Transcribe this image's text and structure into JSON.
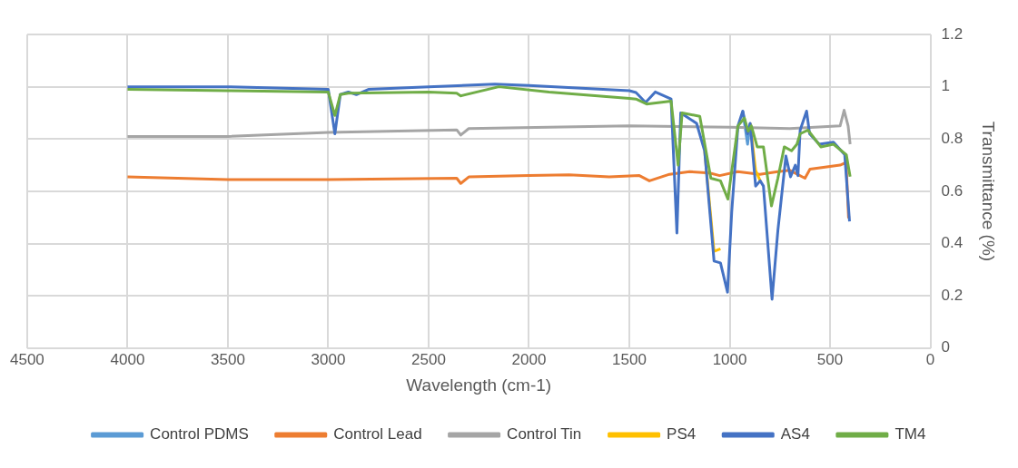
{
  "chart_data": {
    "type": "line",
    "xlabel": "Wavelength (cm-1)",
    "ylabel": "Transmittance (%)",
    "xlim": [
      4500,
      0
    ],
    "xticks": [
      4500,
      4000,
      3500,
      3000,
      2500,
      2000,
      1500,
      1000,
      500,
      0
    ],
    "ylim": [
      0,
      1.2
    ],
    "yticks": [
      0,
      0.2,
      0.4,
      0.6,
      0.8,
      1,
      1.2
    ],
    "grid": true,
    "legend": "bottom",
    "marker": "none",
    "line_style": "solid",
    "series": [
      {
        "name": "Control PDMS",
        "color": "#5b9bd5",
        "x": [
          935,
          911,
          898
        ],
        "values": [
          0.907,
          0.78,
          0.86
        ]
      },
      {
        "name": "Control Lead",
        "color": "#ed7d31",
        "x": [
          4000,
          3500,
          3000,
          2360,
          2340,
          2300,
          2000,
          1800,
          1600,
          1450,
          1400,
          1300,
          1200,
          1100,
          1050,
          960,
          850,
          760,
          700,
          625,
          600,
          450,
          420,
          408,
          400
        ],
        "values": [
          0.655,
          0.645,
          0.645,
          0.65,
          0.63,
          0.655,
          0.66,
          0.663,
          0.655,
          0.66,
          0.64,
          0.665,
          0.675,
          0.67,
          0.66,
          0.675,
          0.665,
          0.675,
          0.68,
          0.65,
          0.685,
          0.7,
          0.71,
          0.5,
          0.5
        ]
      },
      {
        "name": "Control Tin",
        "color": "#a5a5a5",
        "x": [
          4000,
          3500,
          3000,
          2360,
          2340,
          2300,
          1500,
          1000,
          700,
          450,
          430,
          410,
          400
        ],
        "values": [
          0.81,
          0.81,
          0.825,
          0.835,
          0.815,
          0.84,
          0.85,
          0.845,
          0.84,
          0.85,
          0.91,
          0.85,
          0.78
        ]
      },
      {
        "name": "PS4",
        "color": "#ffc000",
        "x": [
          1125,
          1078,
          1046,
          1011,
          950,
          898,
          871,
          848
        ],
        "values": [
          0.755,
          0.37,
          0.38,
          null,
          null,
          0.86,
          0.68,
          0.64
        ]
      },
      {
        "name": "AS4",
        "color": "#4472c4",
        "x": [
          4000,
          3500,
          3000,
          2967,
          2940,
          2900,
          2860,
          2800,
          2500,
          2170,
          2000,
          1500,
          1467,
          1419,
          1371,
          1292,
          1263,
          1244,
          1165,
          1125,
          1078,
          1046,
          1011,
          990,
          959,
          935,
          911,
          898,
          871,
          848,
          832,
          789,
          760,
          720,
          697,
          673,
          660,
          649,
          617,
          602,
          554,
          483,
          427,
          403
        ],
        "values": [
          1.0,
          1.0,
          0.99,
          0.82,
          0.97,
          0.98,
          0.97,
          0.99,
          1.0,
          1.01,
          1.005,
          0.985,
          0.978,
          0.94,
          0.98,
          0.953,
          0.44,
          0.9,
          0.86,
          0.755,
          0.333,
          0.326,
          0.214,
          0.52,
          0.85,
          0.907,
          0.82,
          0.86,
          0.62,
          0.64,
          0.62,
          0.187,
          0.45,
          0.735,
          0.655,
          0.7,
          0.66,
          0.834,
          0.907,
          0.82,
          0.78,
          0.788,
          0.74,
          0.485
        ]
      },
      {
        "name": "TM4",
        "color": "#70ad47",
        "x": [
          4000,
          3500,
          3000,
          2967,
          2940,
          2900,
          2500,
          2360,
          2340,
          2150,
          1900,
          1500,
          1467,
          1414,
          1292,
          1257,
          1237,
          1149,
          1094,
          1046,
          1009,
          959,
          927,
          908,
          892,
          863,
          832,
          792,
          760,
          728,
          692,
          665,
          649,
          610,
          546,
          483,
          419,
          400
        ],
        "values": [
          0.99,
          0.985,
          0.98,
          0.89,
          0.97,
          0.975,
          0.98,
          0.975,
          0.965,
          1.0,
          0.98,
          0.955,
          0.953,
          0.934,
          0.945,
          0.7,
          0.9,
          0.887,
          0.65,
          0.64,
          0.57,
          0.85,
          0.88,
          0.83,
          0.85,
          0.77,
          0.77,
          0.544,
          0.65,
          0.77,
          0.755,
          0.78,
          0.82,
          0.834,
          0.77,
          0.78,
          0.74,
          0.656
        ]
      }
    ]
  }
}
